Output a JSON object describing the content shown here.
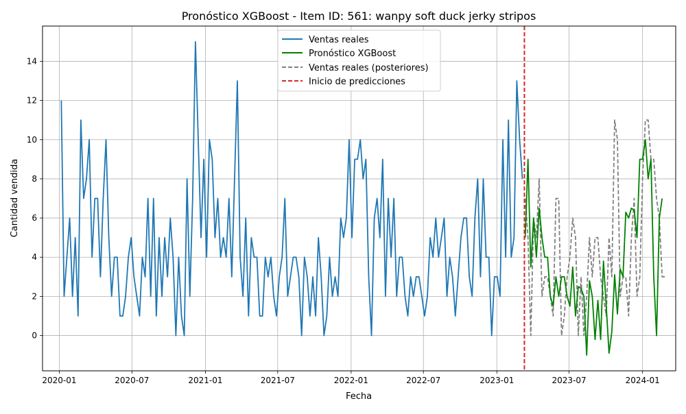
{
  "chart_data": {
    "type": "line",
    "title": "Pronóstico XGBoost - Item ID: 561: wanpy soft duck jerky stripos",
    "xlabel": "Fecha",
    "ylabel": "Cantidad vendida",
    "x_ticks": [
      "2020-01",
      "2020-07",
      "2021-01",
      "2021-07",
      "2022-01",
      "2022-07",
      "2023-01",
      "2023-07",
      "2024-01"
    ],
    "y_ticks": [
      "0",
      "2",
      "4",
      "6",
      "8",
      "10",
      "12",
      "14"
    ],
    "xlim": [
      "2019-11-20",
      "2024-03-24"
    ],
    "ylim": [
      -1.8,
      15.8
    ],
    "grid": true,
    "legend_position": "top-center",
    "colors": {
      "actual": "#1f77b4",
      "forecast": "#008000",
      "post": "#808080",
      "start": "#d62728"
    },
    "series": [
      {
        "name": "Ventas reales",
        "style": "solid",
        "color": "#1f77b4",
        "points": [
          [
            "2020-01-06",
            12
          ],
          [
            "2020-01-13",
            2
          ],
          [
            "2020-01-20",
            4
          ],
          [
            "2020-01-27",
            6
          ],
          [
            "2020-02-03",
            2
          ],
          [
            "2020-02-10",
            5
          ],
          [
            "2020-02-17",
            1
          ],
          [
            "2020-02-24",
            11
          ],
          [
            "2020-03-02",
            7
          ],
          [
            "2020-03-09",
            8
          ],
          [
            "2020-03-16",
            10
          ],
          [
            "2020-03-23",
            4
          ],
          [
            "2020-03-30",
            7
          ],
          [
            "2020-04-06",
            7
          ],
          [
            "2020-04-13",
            3
          ],
          [
            "2020-04-20",
            7
          ],
          [
            "2020-04-27",
            10
          ],
          [
            "2020-05-04",
            5
          ],
          [
            "2020-05-11",
            2
          ],
          [
            "2020-05-18",
            4
          ],
          [
            "2020-05-25",
            4
          ],
          [
            "2020-06-01",
            1
          ],
          [
            "2020-06-08",
            1
          ],
          [
            "2020-06-15",
            2
          ],
          [
            "2020-06-22",
            4
          ],
          [
            "2020-06-29",
            5
          ],
          [
            "2020-07-06",
            3
          ],
          [
            "2020-07-13",
            2
          ],
          [
            "2020-07-20",
            1
          ],
          [
            "2020-07-27",
            4
          ],
          [
            "2020-08-03",
            3
          ],
          [
            "2020-08-10",
            7
          ],
          [
            "2020-08-17",
            2
          ],
          [
            "2020-08-24",
            7
          ],
          [
            "2020-08-31",
            1
          ],
          [
            "2020-09-07",
            5
          ],
          [
            "2020-09-14",
            2
          ],
          [
            "2020-09-21",
            5
          ],
          [
            "2020-09-28",
            3
          ],
          [
            "2020-10-05",
            6
          ],
          [
            "2020-10-12",
            4
          ],
          [
            "2020-10-19",
            0
          ],
          [
            "2020-10-26",
            4
          ],
          [
            "2020-11-02",
            1
          ],
          [
            "2020-11-09",
            0
          ],
          [
            "2020-11-16",
            8
          ],
          [
            "2020-11-23",
            2
          ],
          [
            "2020-11-30",
            7
          ],
          [
            "2020-12-07",
            15
          ],
          [
            "2020-12-14",
            10
          ],
          [
            "2020-12-21",
            5
          ],
          [
            "2020-12-28",
            9
          ],
          [
            "2021-01-04",
            4
          ],
          [
            "2021-01-11",
            10
          ],
          [
            "2021-01-18",
            9
          ],
          [
            "2021-01-25",
            5
          ],
          [
            "2021-02-01",
            7
          ],
          [
            "2021-02-08",
            4
          ],
          [
            "2021-02-15",
            5
          ],
          [
            "2021-02-22",
            4
          ],
          [
            "2021-03-01",
            7
          ],
          [
            "2021-03-08",
            3
          ],
          [
            "2021-03-15",
            8
          ],
          [
            "2021-03-22",
            13
          ],
          [
            "2021-03-29",
            4
          ],
          [
            "2021-04-05",
            2
          ],
          [
            "2021-04-12",
            6
          ],
          [
            "2021-04-19",
            1
          ],
          [
            "2021-04-26",
            5
          ],
          [
            "2021-05-03",
            4
          ],
          [
            "2021-05-10",
            4
          ],
          [
            "2021-05-17",
            1
          ],
          [
            "2021-05-24",
            1
          ],
          [
            "2021-05-31",
            4
          ],
          [
            "2021-06-07",
            3
          ],
          [
            "2021-06-14",
            4
          ],
          [
            "2021-06-21",
            2
          ],
          [
            "2021-06-28",
            1
          ],
          [
            "2021-07-05",
            3
          ],
          [
            "2021-07-12",
            4
          ],
          [
            "2021-07-19",
            7
          ],
          [
            "2021-07-26",
            2
          ],
          [
            "2021-08-02",
            3
          ],
          [
            "2021-08-09",
            4
          ],
          [
            "2021-08-16",
            4
          ],
          [
            "2021-08-23",
            3
          ],
          [
            "2021-08-30",
            0
          ],
          [
            "2021-09-06",
            4
          ],
          [
            "2021-09-13",
            3
          ],
          [
            "2021-09-20",
            1
          ],
          [
            "2021-09-27",
            3
          ],
          [
            "2021-10-04",
            1
          ],
          [
            "2021-10-11",
            5
          ],
          [
            "2021-10-18",
            3
          ],
          [
            "2021-10-25",
            0
          ],
          [
            "2021-11-01",
            1
          ],
          [
            "2021-11-08",
            4
          ],
          [
            "2021-11-15",
            2
          ],
          [
            "2021-11-22",
            3
          ],
          [
            "2021-11-29",
            2
          ],
          [
            "2021-12-06",
            6
          ],
          [
            "2021-12-13",
            5
          ],
          [
            "2021-12-20",
            6
          ],
          [
            "2021-12-27",
            10
          ],
          [
            "2022-01-03",
            5
          ],
          [
            "2022-01-10",
            9
          ],
          [
            "2022-01-17",
            9
          ],
          [
            "2022-01-24",
            10
          ],
          [
            "2022-01-31",
            8
          ],
          [
            "2022-02-07",
            9
          ],
          [
            "2022-02-14",
            3
          ],
          [
            "2022-02-21",
            0
          ],
          [
            "2022-02-28",
            6
          ],
          [
            "2022-03-07",
            7
          ],
          [
            "2022-03-14",
            5
          ],
          [
            "2022-03-21",
            9
          ],
          [
            "2022-03-28",
            2
          ],
          [
            "2022-04-04",
            7
          ],
          [
            "2022-04-11",
            4
          ],
          [
            "2022-04-18",
            7
          ],
          [
            "2022-04-25",
            2
          ],
          [
            "2022-05-02",
            4
          ],
          [
            "2022-05-09",
            4
          ],
          [
            "2022-05-16",
            2
          ],
          [
            "2022-05-23",
            1
          ],
          [
            "2022-05-30",
            3
          ],
          [
            "2022-06-06",
            2
          ],
          [
            "2022-06-13",
            3
          ],
          [
            "2022-06-20",
            3
          ],
          [
            "2022-06-27",
            2
          ],
          [
            "2022-07-04",
            1
          ],
          [
            "2022-07-11",
            2
          ],
          [
            "2022-07-18",
            5
          ],
          [
            "2022-07-25",
            4
          ],
          [
            "2022-08-01",
            6
          ],
          [
            "2022-08-08",
            4
          ],
          [
            "2022-08-15",
            5
          ],
          [
            "2022-08-22",
            6
          ],
          [
            "2022-08-29",
            2
          ],
          [
            "2022-09-05",
            4
          ],
          [
            "2022-09-12",
            3
          ],
          [
            "2022-09-19",
            1
          ],
          [
            "2022-09-26",
            3
          ],
          [
            "2022-10-03",
            5
          ],
          [
            "2022-10-10",
            6
          ],
          [
            "2022-10-17",
            6
          ],
          [
            "2022-10-24",
            3
          ],
          [
            "2022-10-31",
            2
          ],
          [
            "2022-11-07",
            6
          ],
          [
            "2022-11-14",
            8
          ],
          [
            "2022-11-21",
            3
          ],
          [
            "2022-11-28",
            8
          ],
          [
            "2022-12-05",
            4
          ],
          [
            "2022-12-12",
            4
          ],
          [
            "2022-12-19",
            0
          ],
          [
            "2022-12-26",
            3
          ],
          [
            "2023-01-02",
            3
          ],
          [
            "2023-01-09",
            2
          ],
          [
            "2023-01-16",
            10
          ],
          [
            "2023-01-23",
            4
          ],
          [
            "2023-01-30",
            11
          ],
          [
            "2023-02-06",
            4
          ],
          [
            "2023-02-13",
            5
          ],
          [
            "2023-02-20",
            13
          ],
          [
            "2023-02-27",
            10
          ],
          [
            "2023-03-06",
            8
          ]
        ]
      },
      {
        "name": "Pronóstico XGBoost",
        "style": "solid",
        "color": "#008000",
        "points": [
          [
            "2023-03-13",
            5
          ],
          [
            "2023-03-20",
            9
          ],
          [
            "2023-03-27",
            3.5
          ],
          [
            "2023-04-03",
            6
          ],
          [
            "2023-04-10",
            4
          ],
          [
            "2023-04-17",
            6.5
          ],
          [
            "2023-04-24",
            5
          ],
          [
            "2023-05-01",
            4
          ],
          [
            "2023-05-08",
            4
          ],
          [
            "2023-05-15",
            2
          ],
          [
            "2023-05-22",
            1.5
          ],
          [
            "2023-05-29",
            3
          ],
          [
            "2023-06-05",
            2
          ],
          [
            "2023-06-12",
            3
          ],
          [
            "2023-06-19",
            3
          ],
          [
            "2023-06-26",
            2
          ],
          [
            "2023-07-03",
            1.5
          ],
          [
            "2023-07-10",
            3.5
          ],
          [
            "2023-07-17",
            1
          ],
          [
            "2023-07-24",
            2.5
          ],
          [
            "2023-07-31",
            2.4
          ],
          [
            "2023-08-07",
            2
          ],
          [
            "2023-08-14",
            -1
          ],
          [
            "2023-08-21",
            2.8
          ],
          [
            "2023-08-28",
            2
          ],
          [
            "2023-09-04",
            -0.2
          ],
          [
            "2023-09-11",
            1.8
          ],
          [
            "2023-09-18",
            -0.2
          ],
          [
            "2023-09-25",
            3.8
          ],
          [
            "2023-10-02",
            1.5
          ],
          [
            "2023-10-09",
            -0.9
          ],
          [
            "2023-10-16",
            0.2
          ],
          [
            "2023-10-23",
            3.1
          ],
          [
            "2023-10-30",
            1.1
          ],
          [
            "2023-11-06",
            3.4
          ],
          [
            "2023-11-13",
            3
          ],
          [
            "2023-11-20",
            6.3
          ],
          [
            "2023-11-27",
            6
          ],
          [
            "2023-12-04",
            6.5
          ],
          [
            "2023-12-11",
            6.4
          ],
          [
            "2023-12-18",
            5
          ],
          [
            "2023-12-25",
            9
          ],
          [
            "2024-01-01",
            9
          ],
          [
            "2024-01-08",
            10
          ],
          [
            "2024-01-15",
            8
          ],
          [
            "2024-01-22",
            9
          ],
          [
            "2024-01-29",
            3
          ],
          [
            "2024-02-05",
            0
          ],
          [
            "2024-02-12",
            6
          ],
          [
            "2024-02-19",
            7
          ]
        ]
      },
      {
        "name": "Ventas reales (posteriores)",
        "style": "dashed",
        "color": "#808080",
        "points": [
          [
            "2023-03-13",
            7
          ],
          [
            "2023-03-20",
            5
          ],
          [
            "2023-03-27",
            0
          ],
          [
            "2023-04-03",
            6
          ],
          [
            "2023-04-10",
            5
          ],
          [
            "2023-04-17",
            8
          ],
          [
            "2023-04-24",
            2
          ],
          [
            "2023-05-01",
            3
          ],
          [
            "2023-05-08",
            3
          ],
          [
            "2023-05-15",
            2
          ],
          [
            "2023-05-22",
            1
          ],
          [
            "2023-05-29",
            7
          ],
          [
            "2023-06-05",
            7
          ],
          [
            "2023-06-12",
            0
          ],
          [
            "2023-06-19",
            1
          ],
          [
            "2023-06-26",
            3
          ],
          [
            "2023-07-03",
            4
          ],
          [
            "2023-07-10",
            6
          ],
          [
            "2023-07-17",
            5
          ],
          [
            "2023-07-24",
            0
          ],
          [
            "2023-07-31",
            3
          ],
          [
            "2023-08-07",
            0
          ],
          [
            "2023-08-14",
            2
          ],
          [
            "2023-08-21",
            5
          ],
          [
            "2023-08-28",
            3
          ],
          [
            "2023-09-04",
            5
          ],
          [
            "2023-09-11",
            5
          ],
          [
            "2023-09-18",
            3
          ],
          [
            "2023-09-25",
            2
          ],
          [
            "2023-10-02",
            1
          ],
          [
            "2023-10-09",
            5
          ],
          [
            "2023-10-16",
            3
          ],
          [
            "2023-10-23",
            11
          ],
          [
            "2023-10-30",
            10
          ],
          [
            "2023-11-06",
            2
          ],
          [
            "2023-11-13",
            3
          ],
          [
            "2023-11-20",
            3
          ],
          [
            "2023-11-27",
            1
          ],
          [
            "2023-12-04",
            5
          ],
          [
            "2023-12-11",
            7
          ],
          [
            "2023-12-18",
            2
          ],
          [
            "2023-12-25",
            3
          ],
          [
            "2024-01-01",
            8
          ],
          [
            "2024-01-08",
            11
          ],
          [
            "2024-01-15",
            11
          ],
          [
            "2024-01-22",
            9
          ],
          [
            "2024-01-29",
            9
          ],
          [
            "2024-02-05",
            7
          ],
          [
            "2024-02-12",
            6
          ],
          [
            "2024-02-19",
            3
          ],
          [
            "2024-02-26",
            3
          ]
        ]
      }
    ],
    "vline": {
      "name": "Inicio de predicciones",
      "x": "2023-03-11",
      "style": "dashed",
      "color": "#d62728"
    }
  }
}
